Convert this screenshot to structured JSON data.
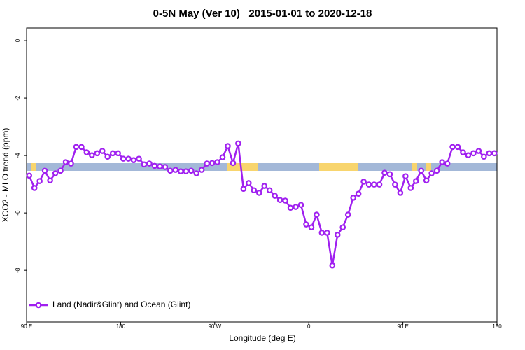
{
  "chart_data": {
    "type": "line",
    "title": "0-5N May (Ver 10)   2015-01-01 to 2020-12-18",
    "xlabel": "Longitude (deg E)",
    "ylabel": "XCO2 - MLO trend (ppm)",
    "xlim": [
      90,
      540
    ],
    "ylim": [
      -9.8,
      0.44
    ],
    "xticks": [
      {
        "value": 90,
        "label": "90 E"
      },
      180,
      {
        "value": 270,
        "label": "90 W"
      },
      {
        "value": 360,
        "label": "0"
      },
      {
        "value": 450,
        "label": "90 E"
      },
      {
        "value": 540,
        "label": "180"
      }
    ],
    "yticks": [
      0,
      -2,
      -4,
      -6,
      -8
    ],
    "legend": "bottom-left",
    "x": [
      92.5,
      97.5,
      102.5,
      107.5,
      112.5,
      117.5,
      122.5,
      127.5,
      132.5,
      137.5,
      142.5,
      147.5,
      152.5,
      157.5,
      162.5,
      167.5,
      172.5,
      177.5,
      182.5,
      187.5,
      192.5,
      197.5,
      202.5,
      207.5,
      212.5,
      217.5,
      222.5,
      227.5,
      232.5,
      237.5,
      242.5,
      247.5,
      252.5,
      257.5,
      262.5,
      267.5,
      272.5,
      277.5,
      282.5,
      287.5,
      292.5,
      297.5,
      302.5,
      307.5,
      312.5,
      317.5,
      322.5,
      327.5,
      332.5,
      337.5,
      342.5,
      347.5,
      352.5,
      357.5,
      362.5,
      367.5,
      372.5,
      377.5,
      382.5,
      387.5,
      392.5,
      397.5,
      402.5,
      407.5,
      412.5,
      417.5,
      422.5,
      427.5,
      432.5,
      437.5,
      442.5,
      447.5,
      452.5,
      457.5,
      462.5,
      467.5,
      472.5,
      477.5,
      482.5,
      487.5,
      492.5,
      497.5,
      502.5,
      507.5,
      512.5,
      517.5,
      522.5,
      527.5,
      532.5,
      537.5
    ],
    "series": [
      {
        "name": "Land (Nadir&Glint) and Ocean (Glint)",
        "color": "#a020f0",
        "values": [
          -4.7,
          -5.13,
          -4.89,
          -4.53,
          -4.87,
          -4.62,
          -4.53,
          -4.23,
          -4.28,
          -3.7,
          -3.7,
          -3.89,
          -3.99,
          -3.92,
          -3.84,
          -4.04,
          -3.92,
          -3.92,
          -4.11,
          -4.11,
          -4.16,
          -4.11,
          -4.31,
          -4.28,
          -4.36,
          -4.38,
          -4.4,
          -4.53,
          -4.5,
          -4.55,
          -4.55,
          -4.53,
          -4.62,
          -4.5,
          -4.28,
          -4.26,
          -4.23,
          -4.06,
          -3.67,
          -4.26,
          -3.58,
          -5.16,
          -4.96,
          -5.21,
          -5.3,
          -5.06,
          -5.21,
          -5.4,
          -5.55,
          -5.57,
          -5.82,
          -5.79,
          -5.72,
          -6.4,
          -6.5,
          -6.06,
          -6.69,
          -6.69,
          -7.83,
          -6.76,
          -6.5,
          -6.06,
          -5.47,
          -5.33,
          -4.91,
          -5.01,
          -5.01,
          -5.01,
          -4.6,
          -4.65,
          -5.01,
          -5.3,
          -4.72,
          -5.13,
          -4.89,
          -4.53,
          -4.87,
          -4.62,
          -4.53,
          -4.23,
          -4.28,
          -3.7,
          -3.7,
          -3.89,
          -3.99,
          -3.92,
          -3.84,
          -4.04,
          -3.92,
          -3.92
        ]
      }
    ]
  }
}
